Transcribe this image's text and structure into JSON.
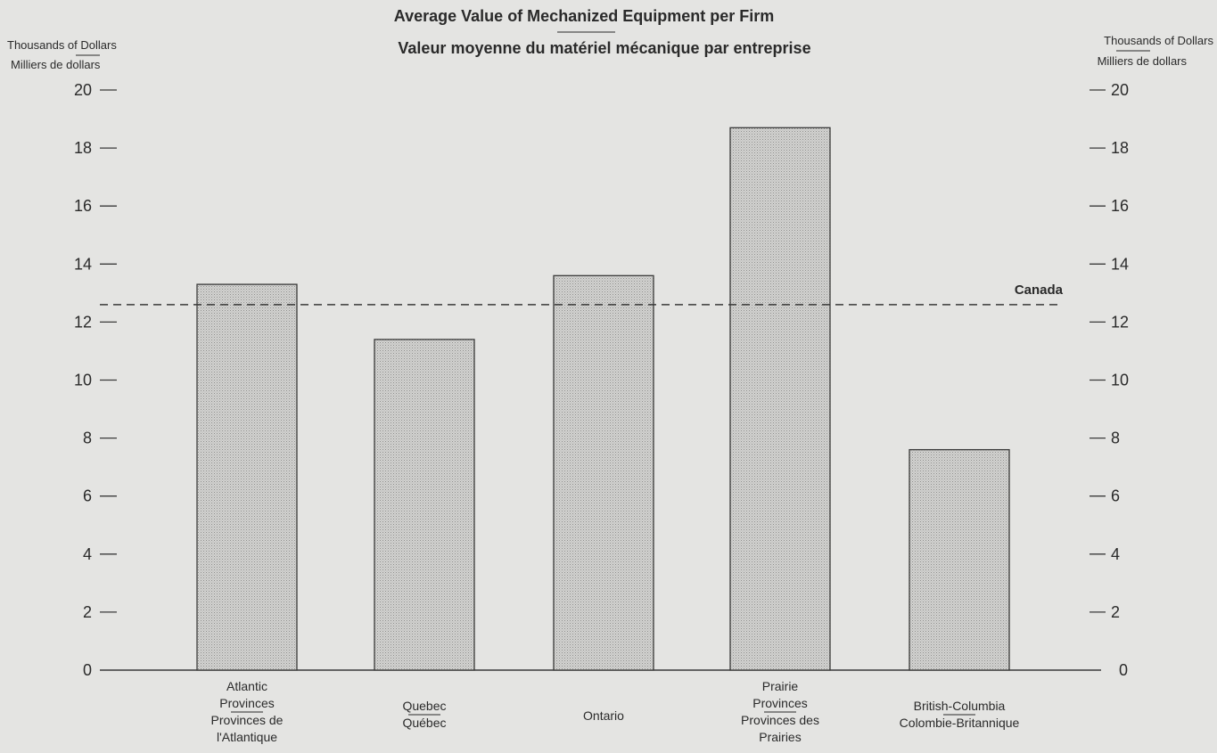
{
  "chart_data": {
    "type": "bar",
    "title_en": "Average Value of Mechanized Equipment per Firm",
    "title_fr": "Valeur moyenne du matériel mécanique par entreprise",
    "ylabel_left_en": "Thousands of Dollars",
    "ylabel_left_fr": "Milliers de dollars",
    "ylabel_right_en": "Thousands of Dollars",
    "ylabel_right_fr": "Milliers de dollars",
    "ylim": [
      0,
      20
    ],
    "yticks": [
      0,
      2,
      4,
      6,
      8,
      10,
      12,
      14,
      16,
      18,
      20
    ],
    "ytick_labels": [
      "0",
      "2",
      "4",
      "6",
      "8",
      "10",
      "12",
      "14",
      "16",
      "18",
      "20"
    ],
    "categories": [
      {
        "en": "Atlantic Provinces",
        "lines": [
          "Atlantic",
          "Provinces",
          "Provinces de",
          "l'Atlantique"
        ]
      },
      {
        "en": "Quebec",
        "lines": [
          "Quebec",
          "Québec"
        ]
      },
      {
        "en": "Ontario",
        "lines": [
          "Ontario"
        ]
      },
      {
        "en": "Prairie Provinces",
        "lines": [
          "Prairie",
          "Provinces",
          "Provinces des",
          "Prairies"
        ]
      },
      {
        "en": "British-Columbia",
        "lines": [
          "British-Columbia",
          "Colombie-Britannique"
        ]
      }
    ],
    "values": [
      13.3,
      11.4,
      13.6,
      18.7,
      7.6
    ],
    "reference_line": {
      "label": "Canada",
      "value": 12.6
    },
    "bar_color": "#cfcfcd",
    "grid": false
  }
}
